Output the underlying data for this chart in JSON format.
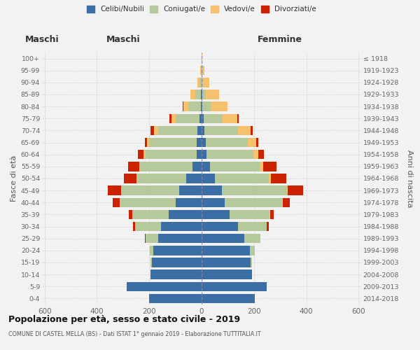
{
  "age_groups": [
    "0-4",
    "5-9",
    "10-14",
    "15-19",
    "20-24",
    "25-29",
    "30-34",
    "35-39",
    "40-44",
    "45-49",
    "50-54",
    "55-59",
    "60-64",
    "65-69",
    "70-74",
    "75-79",
    "80-84",
    "85-89",
    "90-94",
    "95-99",
    "100+"
  ],
  "birth_years": [
    "2014-2018",
    "2009-2013",
    "2004-2008",
    "1999-2003",
    "1994-1998",
    "1989-1993",
    "1984-1988",
    "1979-1983",
    "1974-1978",
    "1969-1973",
    "1964-1968",
    "1959-1963",
    "1954-1958",
    "1949-1953",
    "1944-1948",
    "1939-1943",
    "1934-1938",
    "1929-1933",
    "1924-1928",
    "1919-1923",
    "≤ 1918"
  ],
  "males_celibi": [
    200,
    285,
    195,
    190,
    185,
    165,
    155,
    125,
    100,
    85,
    60,
    35,
    20,
    20,
    15,
    8,
    3,
    2,
    1,
    0,
    0
  ],
  "males_coniugati": [
    0,
    0,
    0,
    4,
    12,
    50,
    98,
    140,
    210,
    220,
    185,
    200,
    195,
    180,
    150,
    90,
    48,
    22,
    8,
    3,
    1
  ],
  "males_vedovi": [
    0,
    0,
    0,
    0,
    0,
    0,
    0,
    0,
    2,
    2,
    3,
    4,
    7,
    9,
    18,
    18,
    18,
    18,
    8,
    2,
    0
  ],
  "males_divorziati": [
    0,
    0,
    0,
    0,
    0,
    3,
    8,
    14,
    28,
    52,
    48,
    42,
    22,
    8,
    12,
    7,
    4,
    0,
    0,
    0,
    0
  ],
  "females_nubili": [
    202,
    248,
    192,
    188,
    185,
    162,
    140,
    108,
    88,
    78,
    52,
    32,
    18,
    16,
    12,
    7,
    3,
    2,
    1,
    0,
    0
  ],
  "females_coniugate": [
    0,
    0,
    0,
    4,
    18,
    62,
    108,
    152,
    220,
    248,
    205,
    190,
    180,
    160,
    126,
    72,
    33,
    14,
    5,
    2,
    1
  ],
  "females_vedove": [
    0,
    0,
    0,
    0,
    0,
    0,
    1,
    2,
    2,
    4,
    9,
    13,
    18,
    33,
    48,
    58,
    62,
    52,
    24,
    8,
    2
  ],
  "females_divorziate": [
    0,
    0,
    0,
    0,
    1,
    2,
    7,
    14,
    28,
    58,
    58,
    52,
    22,
    8,
    10,
    4,
    2,
    0,
    0,
    0,
    0
  ],
  "colors": {
    "celibi": "#3a6ea5",
    "coniugati": "#b5c99a",
    "vedovi": "#f5c16c",
    "divorziati": "#cc2200"
  },
  "legend_labels": [
    "Celibi/Nubili",
    "Coniugati/e",
    "Vedovi/e",
    "Divorziati/e"
  ],
  "title": "Popolazione per età, sesso e stato civile - 2019",
  "subtitle": "COMUNE DI CASTEL MELLA (BS) - Dati ISTAT 1° gennaio 2019 - Elaborazione TUTTITALIA.IT",
  "xlabel_left": "Maschi",
  "xlabel_right": "Femmine",
  "ylabel_left": "Fasce di età",
  "ylabel_right": "Anni di nascita",
  "xlim": 610,
  "bg_color": "#f2f2f2",
  "grid_color": "#cccccc"
}
